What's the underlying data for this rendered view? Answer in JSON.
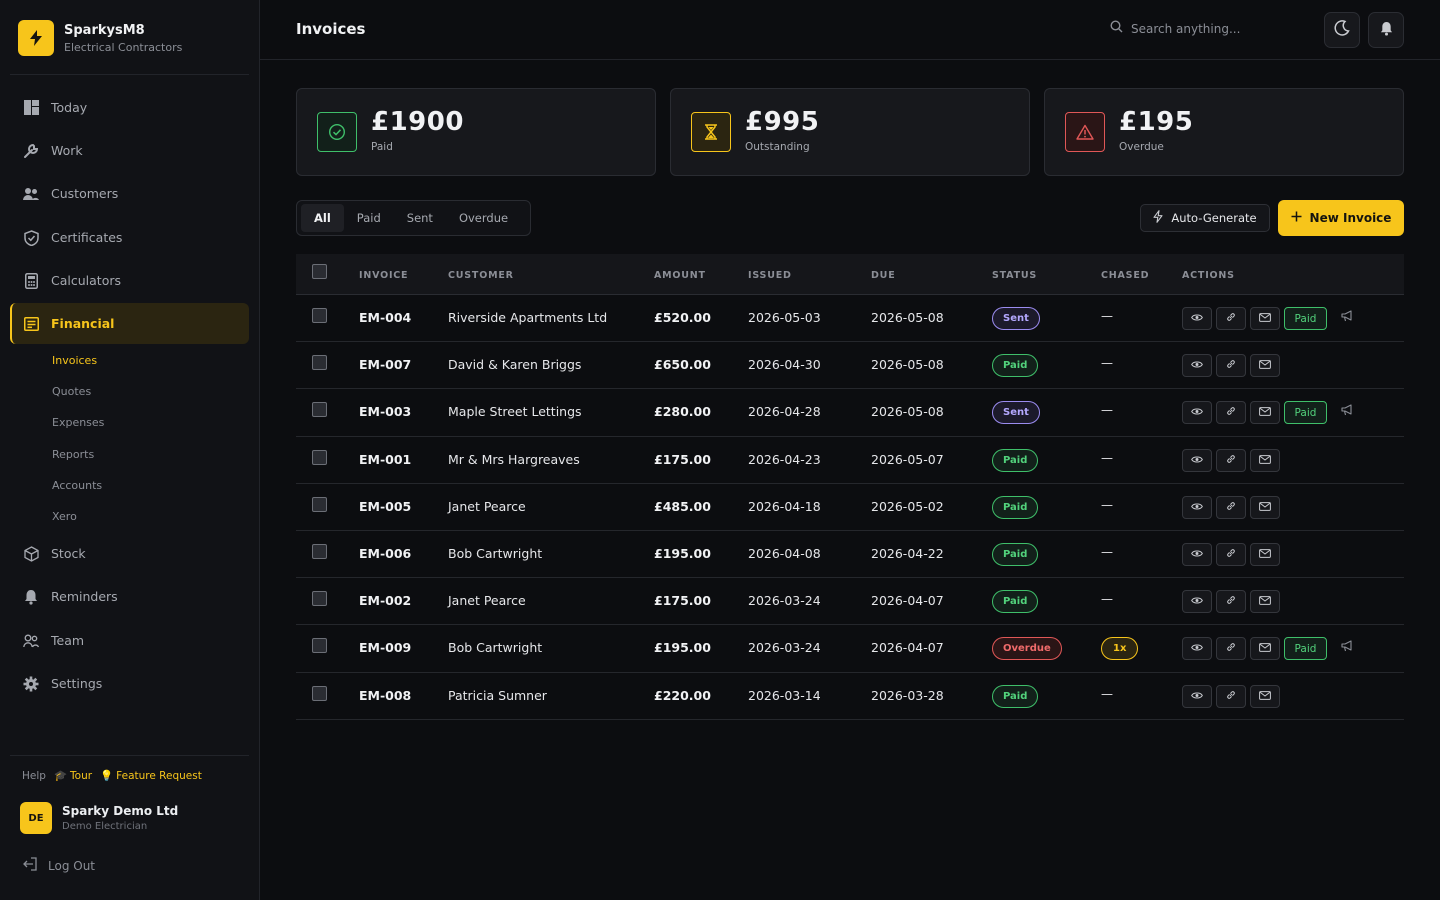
{
  "brand": {
    "name": "SparkysM8",
    "subtitle": "Electrical Contractors"
  },
  "nav": {
    "items": [
      {
        "label": "Today",
        "icon": "dashboard-icon"
      },
      {
        "label": "Work",
        "icon": "wrench-icon"
      },
      {
        "label": "Customers",
        "icon": "users-icon"
      },
      {
        "label": "Certificates",
        "icon": "shield-icon"
      },
      {
        "label": "Calculators",
        "icon": "calculator-icon"
      },
      {
        "label": "Financial",
        "icon": "ledger-icon",
        "active": true
      },
      {
        "label": "Stock",
        "icon": "box-icon"
      },
      {
        "label": "Reminders",
        "icon": "bell-icon"
      },
      {
        "label": "Team",
        "icon": "team-icon"
      },
      {
        "label": "Settings",
        "icon": "gear-icon"
      }
    ],
    "sub_items": [
      "Invoices",
      "Quotes",
      "Expenses",
      "Reports",
      "Accounts",
      "Xero"
    ],
    "active_sub": "Invoices"
  },
  "help": {
    "label": "Help",
    "tour": "Tour",
    "feature": "Feature Request"
  },
  "user": {
    "initials": "DE",
    "name": "Sparky Demo Ltd",
    "role": "Demo Electrician"
  },
  "logout_label": "Log Out",
  "header": {
    "title": "Invoices",
    "search_placeholder": "Search anything..."
  },
  "stats": [
    {
      "value": "£1900",
      "label": "Paid",
      "color": "#3fbf6a",
      "icon": "check-circle-icon"
    },
    {
      "value": "£995",
      "label": "Outstanding",
      "color": "#f7c51b",
      "icon": "hourglass-icon"
    },
    {
      "value": "£195",
      "label": "Overdue",
      "color": "#e05757",
      "icon": "warning-icon"
    }
  ],
  "filters": [
    "All",
    "Paid",
    "Sent",
    "Overdue"
  ],
  "active_filter": "All",
  "buttons": {
    "auto_generate": "Auto-Generate",
    "new_invoice": "New Invoice"
  },
  "table": {
    "columns": [
      "INVOICE",
      "CUSTOMER",
      "AMOUNT",
      "ISSUED",
      "DUE",
      "STATUS",
      "CHASED",
      "ACTIONS"
    ],
    "mark_paid_label": "Paid",
    "rows": [
      {
        "invoice": "EM-004",
        "customer": "Riverside Apartments Ltd",
        "amount": "£520.00",
        "issued": "2026-05-03",
        "due": "2026-05-08",
        "status": "Sent",
        "chased": "—"
      },
      {
        "invoice": "EM-007",
        "customer": "David & Karen Briggs",
        "amount": "£650.00",
        "issued": "2026-04-30",
        "due": "2026-05-08",
        "status": "Paid",
        "chased": "—"
      },
      {
        "invoice": "EM-003",
        "customer": "Maple Street Lettings",
        "amount": "£280.00",
        "issued": "2026-04-28",
        "due": "2026-05-08",
        "status": "Sent",
        "chased": "—"
      },
      {
        "invoice": "EM-001",
        "customer": "Mr & Mrs Hargreaves",
        "amount": "£175.00",
        "issued": "2026-04-23",
        "due": "2026-05-07",
        "status": "Paid",
        "chased": "—"
      },
      {
        "invoice": "EM-005",
        "customer": "Janet Pearce",
        "amount": "£485.00",
        "issued": "2026-04-18",
        "due": "2026-05-02",
        "status": "Paid",
        "chased": "—"
      },
      {
        "invoice": "EM-006",
        "customer": "Bob Cartwright",
        "amount": "£195.00",
        "issued": "2026-04-08",
        "due": "2026-04-22",
        "status": "Paid",
        "chased": "—"
      },
      {
        "invoice": "EM-002",
        "customer": "Janet Pearce",
        "amount": "£175.00",
        "issued": "2026-03-24",
        "due": "2026-04-07",
        "status": "Paid",
        "chased": "—"
      },
      {
        "invoice": "EM-009",
        "customer": "Bob Cartwright",
        "amount": "£195.00",
        "issued": "2026-03-24",
        "due": "2026-04-07",
        "status": "Overdue",
        "chased": "1x"
      },
      {
        "invoice": "EM-008",
        "customer": "Patricia Sumner",
        "amount": "£220.00",
        "issued": "2026-03-14",
        "due": "2026-03-28",
        "status": "Paid",
        "chased": "—"
      }
    ]
  },
  "colors": {
    "accent": "#f7c51b",
    "paid": "#3fbf6a",
    "sent": "#9b8cf0",
    "overdue": "#e05757"
  }
}
